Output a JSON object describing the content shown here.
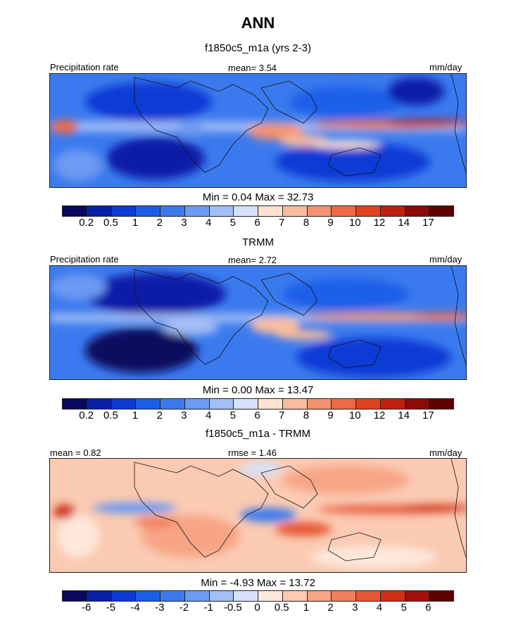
{
  "page": {
    "title": "ANN"
  },
  "panels": [
    {
      "subtitle": "f1850c5_m1a (yrs 2-3)",
      "left_label": "Precipitation rate",
      "center_label": "mean=   3.54",
      "right_label": "mm/day",
      "minmax": "Min =   0.04 Max =  32.73"
    },
    {
      "subtitle": "TRMM",
      "left_label": "Precipitation rate",
      "center_label": "mean=   2.72",
      "right_label": "mm/day",
      "minmax": "Min =   0.00 Max =  13.47"
    },
    {
      "subtitle": "f1850c5_m1a - TRMM",
      "left_label": "mean =   0.82",
      "center_label": "rmse =   1.46",
      "right_label": "mm/day",
      "minmax": "Min =  -4.93 Max =  13.72"
    }
  ],
  "chart_data": [
    {
      "type": "heatmap",
      "title": "f1850c5_m1a (yrs 2-3)",
      "variable": "Precipitation rate",
      "units": "mm/day",
      "mean": 3.54,
      "min": 0.04,
      "max": 32.73,
      "colorbar_levels": [
        "0.2",
        "0.5",
        "1",
        "2",
        "3",
        "4",
        "5",
        "6",
        "7",
        "8",
        "9",
        "10",
        "12",
        "14",
        "17"
      ],
      "colorbar_colors": [
        "#08085e",
        "#0a1fa8",
        "#0d3ad6",
        "#1a5ee8",
        "#3b7aee",
        "#6d9af2",
        "#a4bef6",
        "#d6e2fa",
        "#fde1cf",
        "#f9bb9f",
        "#f4916f",
        "#ee6a47",
        "#e0421f",
        "#c0200e",
        "#8e0a08",
        "#5e0000"
      ]
    },
    {
      "type": "heatmap",
      "title": "TRMM",
      "variable": "Precipitation rate",
      "units": "mm/day",
      "mean": 2.72,
      "min": 0.0,
      "max": 13.47,
      "colorbar_levels": [
        "0.2",
        "0.5",
        "1",
        "2",
        "3",
        "4",
        "5",
        "6",
        "7",
        "8",
        "9",
        "10",
        "12",
        "14",
        "17"
      ],
      "colorbar_colors": [
        "#08085e",
        "#0a1fa8",
        "#0d3ad6",
        "#1a5ee8",
        "#3b7aee",
        "#6d9af2",
        "#a4bef6",
        "#d6e2fa",
        "#fde1cf",
        "#f9bb9f",
        "#f4916f",
        "#ee6a47",
        "#e0421f",
        "#c0200e",
        "#8e0a08",
        "#5e0000"
      ]
    },
    {
      "type": "heatmap",
      "title": "f1850c5_m1a - TRMM",
      "units": "mm/day",
      "mean": 0.82,
      "rmse": 1.46,
      "min": -4.93,
      "max": 13.72,
      "colorbar_levels": [
        "-6",
        "-5",
        "-4",
        "-3",
        "-2",
        "-1",
        "-0.5",
        "0",
        "0.5",
        "1",
        "2",
        "3",
        "4",
        "5",
        "6"
      ],
      "colorbar_colors": [
        "#08085e",
        "#0a1fa8",
        "#0d3ad6",
        "#1a5ee8",
        "#3b7aee",
        "#6d9af2",
        "#a4bef6",
        "#d6e2fa",
        "#fde8dc",
        "#fbcab2",
        "#f7a585",
        "#f17f5b",
        "#e85735",
        "#cf3016",
        "#a0100a",
        "#5e0000"
      ]
    }
  ]
}
